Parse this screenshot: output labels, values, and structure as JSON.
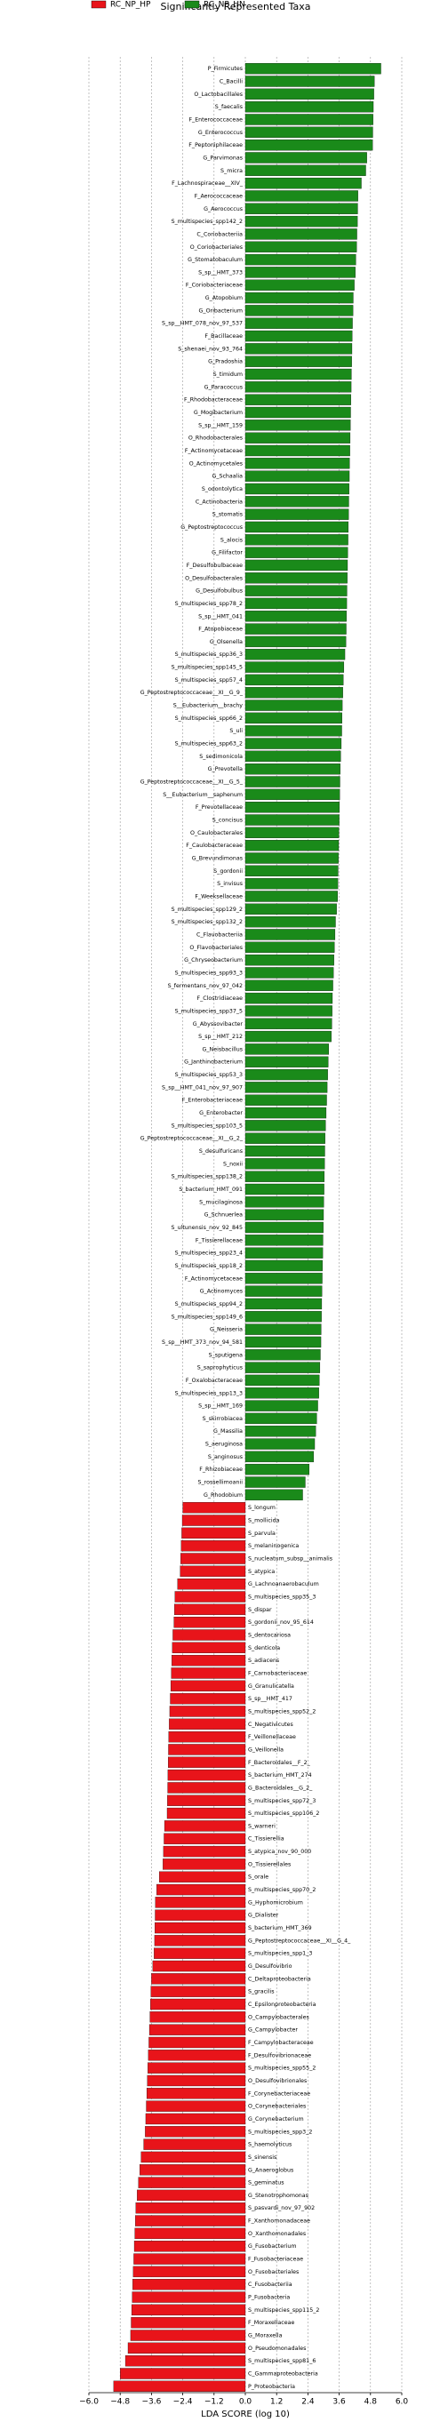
{
  "chart_data": {
    "type": "barh",
    "title": "Significantly Represented Taxa",
    "xlabel": "LDA SCORE (log 10)",
    "xlim": [
      -6,
      6
    ],
    "xticks": [
      {
        "value": -6,
        "label": "−6.0"
      },
      {
        "value": -4.8,
        "label": "−4.8"
      },
      {
        "value": -3.6,
        "label": "−3.6"
      },
      {
        "value": -2.4,
        "label": "−2.4"
      },
      {
        "value": -1.2,
        "label": "−1.2"
      },
      {
        "value": 0,
        "label": "0.0"
      },
      1.2,
      2.4,
      3.6,
      4.8,
      {
        "value": 6,
        "label": "6.0"
      }
    ],
    "grid": true,
    "legend": "top-left",
    "series": [
      {
        "name": "RC_NP_HN",
        "color": "#1a8a1a",
        "categories": [
          "P_Firmicutes",
          "C_Bacilli",
          "O_Lactobacillales",
          "S_faecalis",
          "F_Enterococcaceae",
          "G_Enterococcus",
          "F_Peptoniphilaceae",
          "G_Parvimonas",
          "S_micra",
          "F_Lachnospiraceae__XIV_",
          "F_Aerococcaceae",
          "G_Aerococcus",
          "S_multispecies_spp142_2",
          "C_Coriobacteriia",
          "O_Coriobacteriales",
          "G_Stomatobaculum",
          "S_sp__HMT_373",
          "F_Coriobacteriaceae",
          "G_Atopobium",
          "G_Oribacterium",
          "S_sp__HMT_078_nov_97_537",
          "F_Bacillaceae",
          "S_shenaei_nov_93_764",
          "G_Pradoshia",
          "S_timidum",
          "G_Paracoccus",
          "F_Rhodobacteraceae",
          "G_Mogibacterium",
          "S_sp__HMT_159",
          "O_Rhodobacterales",
          "F_Actinomycetaceae",
          "O_Actinomycetales",
          "G_Schaalia",
          "S_odontolytica",
          "C_Actinobacteria",
          "S_stomatis",
          "G_Peptostreptococcus",
          "S_alocis",
          "G_Filifactor",
          "F_Desulfobulbaceae",
          "O_Desulfobacterales",
          "G_Desulfobulbus",
          "S_multispecies_spp78_2",
          "S_sp__HMT_041",
          "F_Atopobiaceae",
          "G_Olsenella",
          "S_multispecies_spp36_3",
          "S_multispecies_spp145_5",
          "S_multispecies_spp57_4",
          "G_Peptostreptococcaceae__XI__G_9_",
          "S__Eubacterium__brachy",
          "S_multispecies_spp66_2",
          "S_uli",
          "S_multispecies_spp63_2",
          "S_sedimonicola",
          "G_Prevotella",
          "G_Peptostreptococcaceae__XI__G_5_",
          "S__Eubacterium__saphenum",
          "F_Prevotellaceae",
          "S_concisus",
          "O_Caulobacterales",
          "F_Caulobacteraceae",
          "G_Brevundimonas",
          "S_gordonii",
          "S_invisus",
          "F_Weeksellaceae",
          "S_multispecies_spp129_2",
          "S_multispecies_spp132_2",
          "C_Flavobacteriia",
          "O_Flavobacteriales",
          "G_Chryseobacterium",
          "S_multispecies_spp93_3",
          "S_fermentans_nov_97_042",
          "F_Clostridiaceae",
          "S_multispecies_spp37_5",
          "G_Abyssovibacter",
          "S_sp__HMT_212",
          "G_Neisbacillus",
          "G_Janthinobacterium",
          "S_multispecies_spp53_3",
          "S_sp__HMT_041_nov_97_907",
          "F_Enterobacteriaceae",
          "G_Enterobacter",
          "S_multispecies_spp103_5",
          "G_Peptostreptococcaceae__XI__G_2_",
          "S_desulfuricans",
          "S_noxii",
          "S_multispecies_spp138_2",
          "S_bacterium_HMT_091",
          "S_mucilaginosa",
          "G_Schnuerlea",
          "S_ultunensis_nov_92_845",
          "F_Tissierellaceae",
          "S_multispecies_spp23_4",
          "S_multispecies_spp18_2",
          "F_Actinomycetaceae",
          "G_Actinomyces",
          "S_multispecies_spp94_2",
          "S_multispecies_spp149_6",
          "G_Neisseria",
          "S_sp__HMT_373_nov_94_581",
          "S_sputigena",
          "S_saprophyticus",
          "F_Oxalobacteraceae",
          "S_multispecies_spp13_3",
          "S_sp__HMT_169",
          "S_skirrobiacea",
          "G_Massilia",
          "S_aeruginosa",
          "S_anginosus",
          "F_Rhizobiaceae",
          "S_rossellimoanii",
          "G_Rhodobium"
        ],
        "values": [
          5.2,
          4.95,
          4.93,
          4.91,
          4.9,
          4.89,
          4.88,
          4.66,
          4.62,
          4.45,
          4.32,
          4.31,
          4.3,
          4.28,
          4.27,
          4.24,
          4.22,
          4.18,
          4.14,
          4.13,
          4.11,
          4.1,
          4.09,
          4.08,
          4.07,
          4.06,
          4.05,
          4.04,
          4.03,
          4.02,
          4.01,
          4.0,
          3.99,
          3.98,
          3.97,
          3.96,
          3.95,
          3.94,
          3.93,
          3.92,
          3.91,
          3.9,
          3.89,
          3.88,
          3.87,
          3.86,
          3.82,
          3.78,
          3.76,
          3.74,
          3.72,
          3.71,
          3.7,
          3.68,
          3.66,
          3.64,
          3.63,
          3.62,
          3.61,
          3.6,
          3.59,
          3.58,
          3.57,
          3.56,
          3.55,
          3.54,
          3.5,
          3.46,
          3.44,
          3.42,
          3.4,
          3.38,
          3.36,
          3.34,
          3.33,
          3.32,
          3.3,
          3.2,
          3.18,
          3.16,
          3.14,
          3.12,
          3.1,
          3.08,
          3.06,
          3.05,
          3.04,
          3.03,
          3.02,
          3.01,
          3.0,
          2.99,
          2.98,
          2.97,
          2.96,
          2.95,
          2.94,
          2.93,
          2.92,
          2.91,
          2.9,
          2.88,
          2.86,
          2.84,
          2.82,
          2.78,
          2.74,
          2.7,
          2.66,
          2.62,
          2.45,
          2.3,
          2.2
        ]
      },
      {
        "name": "RC_NP_HP",
        "color": "#e8141a",
        "categories": [
          "S_longum",
          "S_mollicida",
          "S_parvula",
          "S_melaninogenica",
          "S_nucleatum_subsp__animalis",
          "S_atypica",
          "G_Lachnoanaerobaculum",
          "S_multispecies_spp35_3",
          "S_dispar",
          "S_gordonii_nov_95_614",
          "S_dentocariosa",
          "S_denticola",
          "S_adiacens",
          "F_Carnobacteriaceae",
          "G_Granulicatella",
          "S_sp__HMT_417",
          "S_multispecies_spp52_2",
          "C_Negativicutes",
          "F_Veillonellaceae",
          "G_Veillonella",
          "F_Bacteroidales__F_2_",
          "S_bacterium_HMT_274",
          "G_Bacteroidales__G_2_",
          "S_multispecies_spp72_3",
          "S_multispecies_spp106_2",
          "S_warneri",
          "C_Tissierellia",
          "S_atypica_nov_90_000",
          "O_Tissierellales",
          "S_orale",
          "S_multispecies_spp70_2",
          "G_Hyphomicrobium",
          "G_Dialister",
          "S_bacterium_HMT_369",
          "G_Peptostreptococcaceae__XI__G_4_",
          "S_multispecies_spp1_3",
          "G_Desulfovibrio",
          "C_Deltaproteobacteria",
          "S_gracilis",
          "C_Epsilonproteobacteria",
          "O_Campylobacterales",
          "G_Campylobacter",
          "F_Campylobacteraceae",
          "F_Desulfovibrionaceae",
          "S_multispecies_spp55_2",
          "O_Desulfovibrionales",
          "F_Corynebacteriaceae",
          "O_Corynebacteriales",
          "G_Corynebacterium",
          "S_multispecies_spp3_2",
          "S_haemolyticus",
          "S_sinensis",
          "G_Anaeroglobus",
          "S_geminatus",
          "G_Stenotrophomonas",
          "S_pasvardi_nov_97_902",
          "F_Xanthomonadaceae",
          "O_Xanthomonadales",
          "G_Fusobacterium",
          "F_Fusobacteriaceae",
          "O_Fusobacteriales",
          "C_Fusobacteriia",
          "P_Fusobacteria",
          "S_multispecies_spp115_2",
          "F_Moraxellaceae",
          "G_Moraxella",
          "O_Pseudomonadales",
          "S_multispecies_spp81_6",
          "C_Gammaproteobacteria",
          "P_Proteobacteria"
        ],
        "values": [
          -2.4,
          -2.42,
          -2.44,
          -2.46,
          -2.48,
          -2.5,
          -2.6,
          -2.7,
          -2.72,
          -2.74,
          -2.78,
          -2.8,
          -2.82,
          -2.84,
          -2.86,
          -2.88,
          -2.9,
          -2.92,
          -2.94,
          -2.95,
          -2.96,
          -2.97,
          -2.98,
          -2.99,
          -3.0,
          -3.1,
          -3.12,
          -3.14,
          -3.16,
          -3.3,
          -3.4,
          -3.45,
          -3.46,
          -3.47,
          -3.48,
          -3.5,
          -3.55,
          -3.6,
          -3.62,
          -3.64,
          -3.66,
          -3.68,
          -3.7,
          -3.72,
          -3.74,
          -3.76,
          -3.78,
          -3.8,
          -3.82,
          -3.84,
          -3.9,
          -4.0,
          -4.05,
          -4.1,
          -4.15,
          -4.2,
          -4.22,
          -4.24,
          -4.26,
          -4.28,
          -4.3,
          -4.32,
          -4.34,
          -4.36,
          -4.38,
          -4.4,
          -4.5,
          -4.6,
          -4.8,
          -5.05
        ]
      }
    ]
  }
}
